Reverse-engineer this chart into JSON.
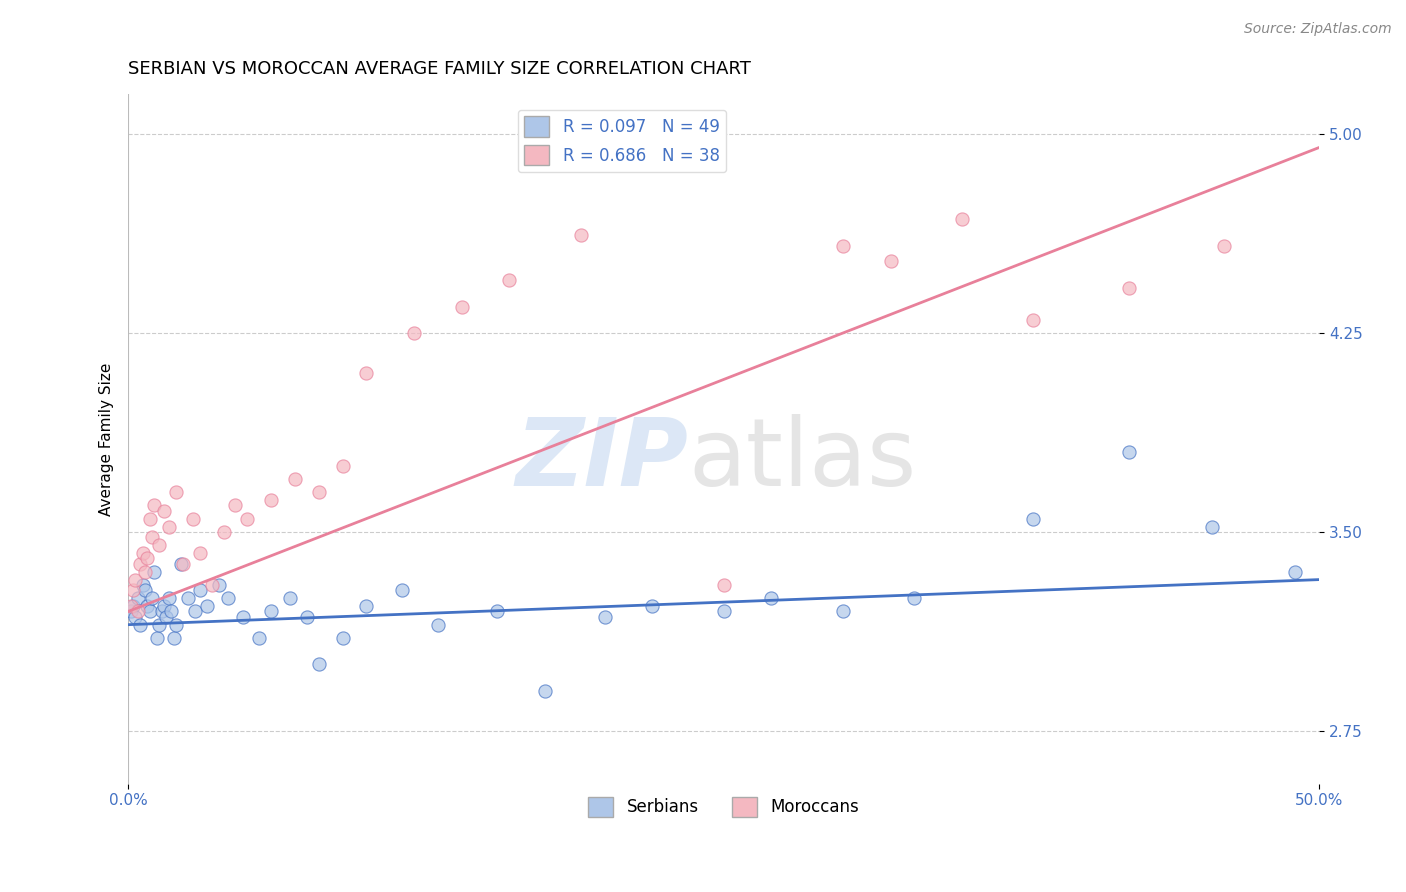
{
  "title": "SERBIAN VS MOROCCAN AVERAGE FAMILY SIZE CORRELATION CHART",
  "source_text": "Source: ZipAtlas.com",
  "ylabel": "Average Family Size",
  "xlim": [
    0.0,
    0.5
  ],
  "ylim": [
    2.55,
    5.15
  ],
  "yticks": [
    2.75,
    3.5,
    4.25,
    5.0
  ],
  "xticks": [
    0.0,
    0.5
  ],
  "xtick_labels": [
    "0.0%",
    "50.0%"
  ],
  "ytick_labels": [
    "2.75",
    "3.50",
    "4.25",
    "5.00"
  ],
  "legend_r_serbian": "R = 0.097",
  "legend_n_serbian": "N = 49",
  "legend_r_moroccan": "R = 0.686",
  "legend_n_moroccan": "N = 38",
  "serbian_color": "#aec6e8",
  "moroccan_color": "#f4b8c1",
  "serbian_line_color": "#4472c4",
  "moroccan_line_color": "#e8809a",
  "serbian_scatter_x": [
    0.001,
    0.002,
    0.003,
    0.004,
    0.005,
    0.006,
    0.007,
    0.008,
    0.009,
    0.01,
    0.011,
    0.012,
    0.013,
    0.014,
    0.015,
    0.016,
    0.017,
    0.018,
    0.019,
    0.02,
    0.022,
    0.025,
    0.028,
    0.03,
    0.033,
    0.038,
    0.042,
    0.048,
    0.055,
    0.06,
    0.068,
    0.075,
    0.08,
    0.09,
    0.1,
    0.115,
    0.13,
    0.155,
    0.175,
    0.2,
    0.22,
    0.25,
    0.27,
    0.3,
    0.33,
    0.38,
    0.42,
    0.455,
    0.49
  ],
  "serbian_scatter_y": [
    3.2,
    3.22,
    3.18,
    3.25,
    3.15,
    3.3,
    3.28,
    3.22,
    3.2,
    3.25,
    3.35,
    3.1,
    3.15,
    3.2,
    3.22,
    3.18,
    3.25,
    3.2,
    3.1,
    3.15,
    3.38,
    3.25,
    3.2,
    3.28,
    3.22,
    3.3,
    3.25,
    3.18,
    3.1,
    3.2,
    3.25,
    3.18,
    3.0,
    3.1,
    3.22,
    3.28,
    3.15,
    3.2,
    2.9,
    3.18,
    3.22,
    3.2,
    3.25,
    3.2,
    3.25,
    3.55,
    3.8,
    3.52,
    3.35
  ],
  "moroccan_scatter_x": [
    0.001,
    0.002,
    0.003,
    0.004,
    0.005,
    0.006,
    0.007,
    0.008,
    0.009,
    0.01,
    0.011,
    0.013,
    0.015,
    0.017,
    0.02,
    0.023,
    0.027,
    0.03,
    0.035,
    0.04,
    0.045,
    0.05,
    0.06,
    0.07,
    0.08,
    0.09,
    0.1,
    0.12,
    0.14,
    0.16,
    0.19,
    0.25,
    0.3,
    0.32,
    0.35,
    0.38,
    0.42,
    0.46
  ],
  "moroccan_scatter_y": [
    3.22,
    3.28,
    3.32,
    3.2,
    3.38,
    3.42,
    3.35,
    3.4,
    3.55,
    3.48,
    3.6,
    3.45,
    3.58,
    3.52,
    3.65,
    3.38,
    3.55,
    3.42,
    3.3,
    3.5,
    3.6,
    3.55,
    3.62,
    3.7,
    3.65,
    3.75,
    4.1,
    4.25,
    4.35,
    4.45,
    4.62,
    3.3,
    4.58,
    4.52,
    4.68,
    4.3,
    4.42,
    4.58
  ],
  "serbian_line_x": [
    0.0,
    0.5
  ],
  "serbian_line_y": [
    3.15,
    3.32
  ],
  "moroccan_line_x": [
    0.0,
    0.5
  ],
  "moroccan_line_y": [
    3.2,
    4.95
  ],
  "background_color": "#ffffff",
  "grid_color": "#cccccc",
  "title_fontsize": 13,
  "axis_label_fontsize": 11,
  "tick_fontsize": 11,
  "legend_fontsize": 12,
  "source_fontsize": 10
}
